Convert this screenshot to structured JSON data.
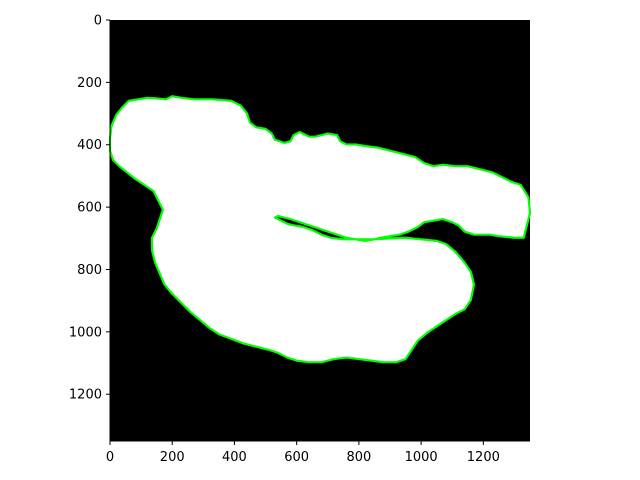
{
  "image": {
    "description_type": "binary segmentation mask with contour overlay",
    "background_color": "#000000",
    "mask_color": "#ffffff",
    "contour_color": "#00ff00",
    "x_range": [
      0,
      1350
    ],
    "y_range": [
      1350,
      0
    ],
    "x_ticks": [
      {
        "value": 0,
        "label": "0"
      },
      {
        "value": 200,
        "label": "200"
      },
      {
        "value": 400,
        "label": "400"
      },
      {
        "value": 600,
        "label": "600"
      },
      {
        "value": 800,
        "label": "800"
      },
      {
        "value": 1000,
        "label": "1000"
      },
      {
        "value": 1200,
        "label": "1200"
      }
    ],
    "y_ticks": [
      {
        "value": 0,
        "label": "0"
      },
      {
        "value": 200,
        "label": "200"
      },
      {
        "value": 400,
        "label": "400"
      },
      {
        "value": 600,
        "label": "600"
      },
      {
        "value": 800,
        "label": "800"
      },
      {
        "value": 1000,
        "label": "1000"
      },
      {
        "value": 1200,
        "label": "1200"
      }
    ]
  }
}
